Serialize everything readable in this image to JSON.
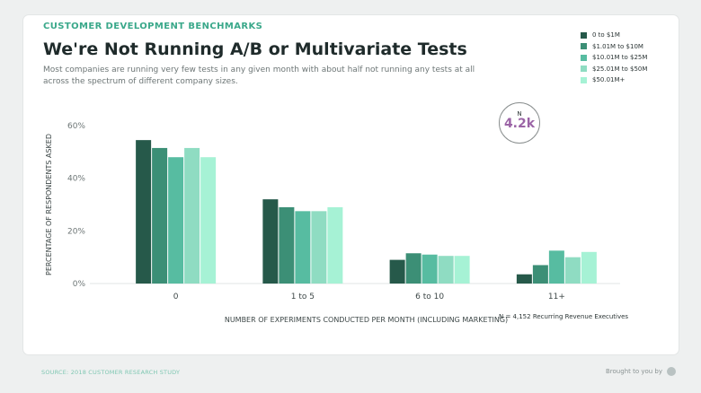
{
  "header": {
    "eyebrow": "CUSTOMER DEVELOPMENT BENCHMARKS",
    "title": "We're Not Running A/B or Multivariate Tests",
    "subtitle": "Most companies are running very few tests in any given month with about half not running any tests at all across the spectrum of different company sizes."
  },
  "badge": {
    "label": "N",
    "value": "4.2k"
  },
  "footnote": "N = 4,152 Recurring Revenue Executives",
  "source": "SOURCE: 2018 CUSTOMER RESEARCH STUDY",
  "brand": {
    "text": "Brought to you by",
    "icon": "profitwell-logo-icon"
  },
  "colors": [
    "#26594a",
    "#3c8f76",
    "#57bca1",
    "#8fdcc2",
    "#a6f2d5"
  ],
  "chart_data": {
    "type": "bar",
    "categories": [
      "0",
      "1 to 5",
      "6 to 10",
      "11+"
    ],
    "series": [
      {
        "name": "0 to $1M",
        "values": [
          54.5,
          32,
          9,
          3.5
        ]
      },
      {
        "name": "$1.01M to $10M",
        "values": [
          51.5,
          29,
          11.5,
          7
        ]
      },
      {
        "name": "$10.01M to $25M",
        "values": [
          48,
          27.5,
          11,
          12.5
        ]
      },
      {
        "name": "$25.01M to $50M",
        "values": [
          51.5,
          27.5,
          10.5,
          10
        ]
      },
      {
        "name": "$50.01M+",
        "values": [
          48,
          29,
          10.5,
          12
        ]
      }
    ],
    "xlabel": "NUMBER OF EXPERIMENTS CONDUCTED PER MONTH (INCLUDING MARKETING)",
    "ylabel": "PERCENTAGE OF RESPONDENTS ASKED",
    "ylim": [
      0,
      60
    ],
    "yticks": [
      "0%",
      "20%",
      "40%",
      "60%"
    ],
    "grid": false,
    "legend": "top-right"
  }
}
